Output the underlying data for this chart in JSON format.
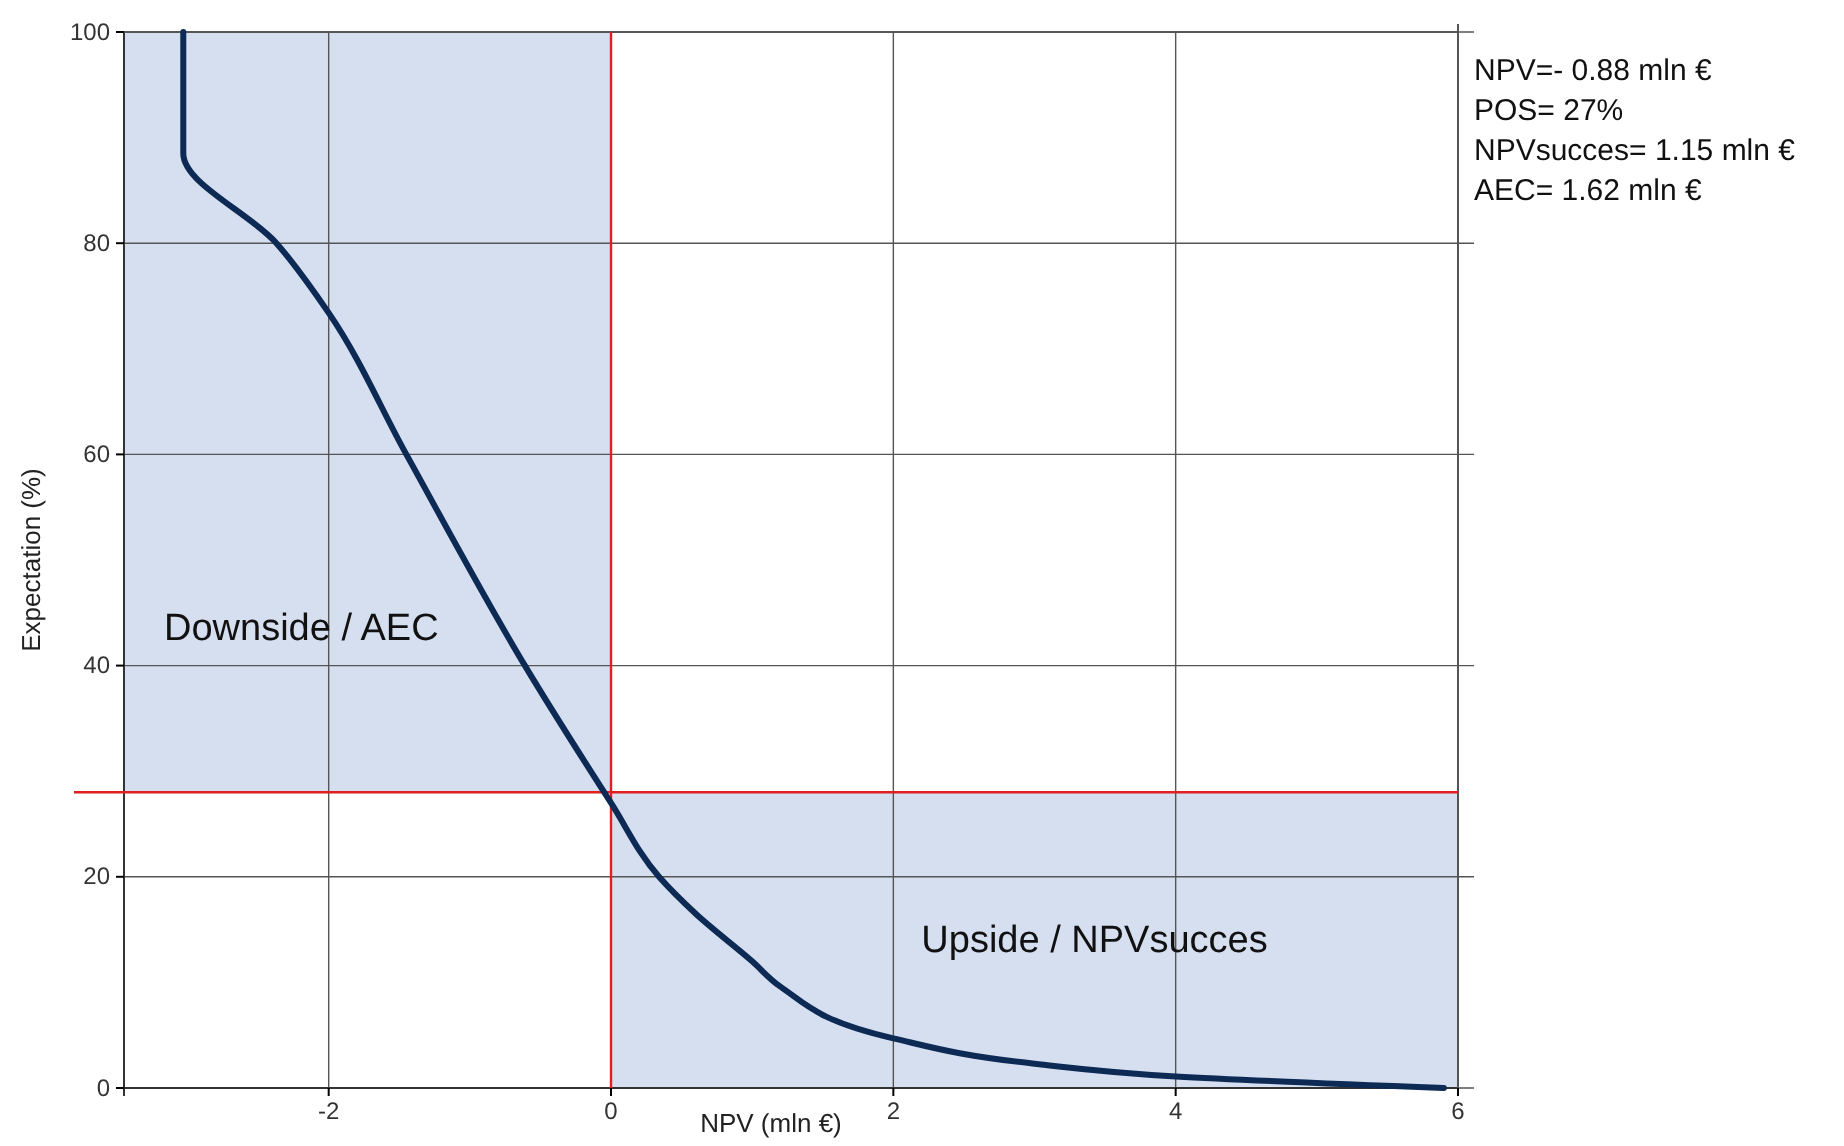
{
  "chart_data": {
    "type": "line",
    "xlabel": "NPV (mln €)",
    "ylabel": "Expectation (%)",
    "xlim": [
      -3.45,
      6
    ],
    "ylim": [
      0,
      100
    ],
    "xticks": [
      -2,
      0,
      2,
      4,
      6
    ],
    "yticks": [
      0,
      20,
      40,
      60,
      80,
      100
    ],
    "grid": true,
    "series": [
      {
        "color": "#0d2a55",
        "x": [
          -3.03,
          -3.03,
          -2.37,
          -2,
          -1.45,
          -0.61,
          0,
          0.34,
          0.6,
          1.0,
          1.2,
          2,
          3,
          4,
          5.9
        ],
        "values": [
          100,
          88.5,
          80,
          73.4,
          60,
          40,
          27,
          20,
          16.5,
          12,
          9.6,
          4.7,
          2.3,
          1.1,
          0
        ]
      }
    ],
    "bands": [
      {
        "axis": "x",
        "from": -3.45,
        "to": 0,
        "label": "Downside / AEC",
        "color": "#d6dff0"
      },
      {
        "axis": "x",
        "from": 0,
        "to": 6,
        "label": "Upside /  NPVsucces",
        "color": "#d6dff0"
      }
    ],
    "ref_lines": [
      {
        "axis": "x",
        "value": 0,
        "color": "#e02020"
      },
      {
        "axis": "y",
        "value": 28,
        "color": "#e02020"
      }
    ],
    "annotations": [
      "NPV=- 0.88 mln €",
      "POS= 27%",
      "NPVsucces= 1.15 mln €",
      "AEC= 1.62 mln €"
    ]
  }
}
